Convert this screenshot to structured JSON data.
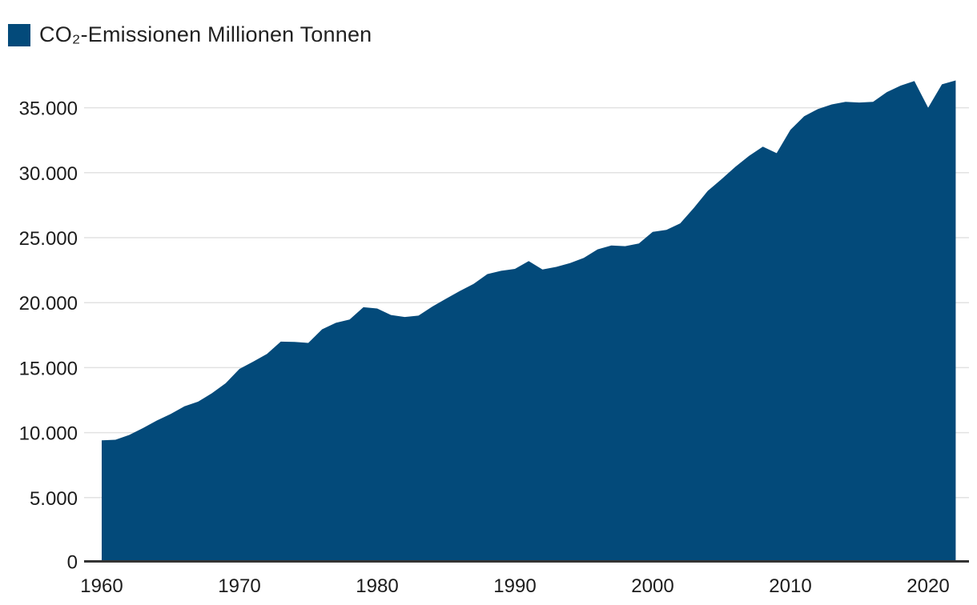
{
  "legend": {
    "label": "CO₂-Emissionen Millionen Tonnen",
    "swatch_color": "#034a7a"
  },
  "chart_data": {
    "type": "area",
    "title": "",
    "series_name": "CO₂-Emissionen Millionen Tonnen",
    "unit": "Millionen Tonnen",
    "x": [
      1960,
      1961,
      1962,
      1963,
      1964,
      1965,
      1966,
      1967,
      1968,
      1969,
      1970,
      1971,
      1972,
      1973,
      1974,
      1975,
      1976,
      1977,
      1978,
      1979,
      1980,
      1981,
      1982,
      1983,
      1984,
      1985,
      1986,
      1987,
      1988,
      1989,
      1990,
      1991,
      1992,
      1993,
      1994,
      1995,
      1996,
      1997,
      1998,
      1999,
      2000,
      2001,
      2002,
      2003,
      2004,
      2005,
      2006,
      2007,
      2008,
      2009,
      2010,
      2011,
      2012,
      2013,
      2014,
      2015,
      2016,
      2017,
      2018,
      2019,
      2020,
      2021,
      2022
    ],
    "values": [
      9400,
      9450,
      9820,
      10350,
      10930,
      11430,
      12020,
      12380,
      13030,
      13800,
      14900,
      15460,
      16050,
      17000,
      16980,
      16900,
      17950,
      18450,
      18700,
      19650,
      19550,
      19050,
      18900,
      19000,
      19700,
      20300,
      20900,
      21450,
      22200,
      22450,
      22600,
      23200,
      22550,
      22750,
      23050,
      23450,
      24100,
      24400,
      24350,
      24550,
      25450,
      25600,
      26100,
      27300,
      28600,
      29500,
      30450,
      31300,
      32000,
      31500,
      33300,
      34350,
      34900,
      35250,
      35450,
      35400,
      35450,
      36200,
      36700,
      37050,
      35000,
      36800,
      37100
    ],
    "xlim": [
      1960,
      2022
    ],
    "ylim": [
      0,
      37500
    ],
    "x_ticks": [
      {
        "value": 1960,
        "label": "1960"
      },
      {
        "value": 1970,
        "label": "1970"
      },
      {
        "value": 1980,
        "label": "1980"
      },
      {
        "value": 1990,
        "label": "1990"
      },
      {
        "value": 2000,
        "label": "2000"
      },
      {
        "value": 2010,
        "label": "2010"
      },
      {
        "value": 2020,
        "label": "2020"
      }
    ],
    "y_ticks": [
      {
        "value": 0,
        "label": "0"
      },
      {
        "value": 5000,
        "label": "5.000"
      },
      {
        "value": 10000,
        "label": "10.000"
      },
      {
        "value": 15000,
        "label": "15.000"
      },
      {
        "value": 20000,
        "label": "20.000"
      },
      {
        "value": 25000,
        "label": "25.000"
      },
      {
        "value": 30000,
        "label": "30.000"
      },
      {
        "value": 35000,
        "label": "35.000"
      }
    ],
    "grid": true,
    "legend_position": "top-left",
    "colors": {
      "area": "#034a7a",
      "grid": "#e2e2e2",
      "axis": "#333333",
      "text": "#1c1c1c"
    }
  }
}
